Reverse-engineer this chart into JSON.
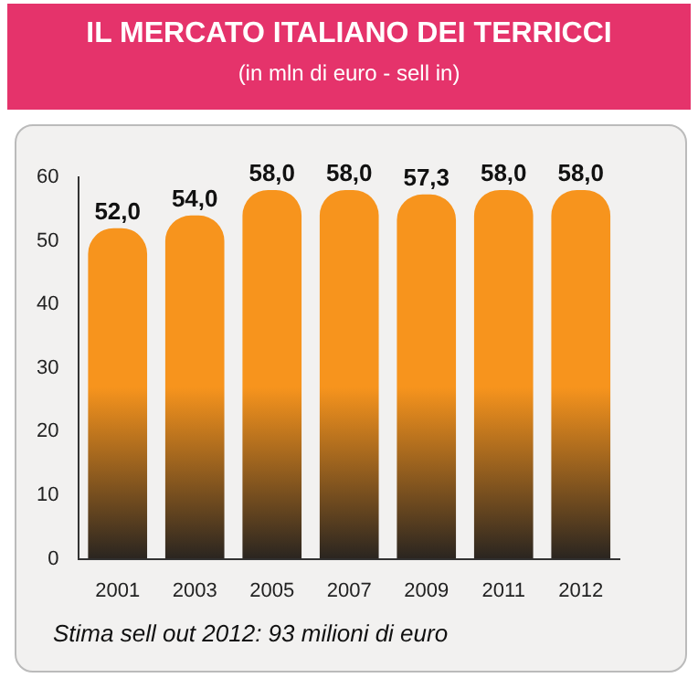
{
  "chart_data": {
    "type": "bar",
    "title": "IL MERCATO ITALIANO DEI TERRICCI",
    "subtitle": "(in mln di euro - sell in)",
    "categories": [
      "2001",
      "2003",
      "2005",
      "2007",
      "2009",
      "2011",
      "2012"
    ],
    "values": [
      52.0,
      54.0,
      58.0,
      58.0,
      57.3,
      58.0,
      58.0
    ],
    "value_labels": [
      "52,0",
      "54,0",
      "58,0",
      "58,0",
      "57,3",
      "58,0",
      "58,0"
    ],
    "color": "#f7941d",
    "ylim": [
      0,
      60
    ],
    "yticks": [
      0,
      10,
      20,
      30,
      40,
      50,
      60
    ],
    "grid": false,
    "legend": false,
    "annotations": [
      "Stima sell out 2012: 93 milioni di euro"
    ]
  }
}
